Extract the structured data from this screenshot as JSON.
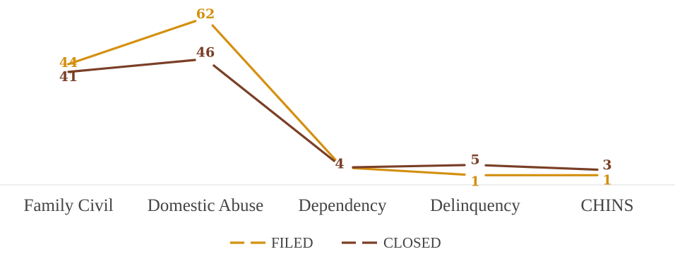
{
  "chart_data": {
    "type": "line",
    "categories": [
      "Family Civil",
      "Domestic Abuse",
      "Dependency",
      "Delinquency",
      "CHINS"
    ],
    "series": [
      {
        "name": "FILED",
        "values": [
          44,
          62,
          4,
          1,
          1
        ],
        "color": "#D4900F"
      },
      {
        "name": "CLOSED",
        "values": [
          41,
          46,
          4,
          5,
          3
        ],
        "color": "#7A3F26"
      }
    ],
    "value_labels": {
      "FILED": [
        "44",
        "62",
        "",
        "1",
        "1"
      ],
      "CLOSED": [
        "41",
        "46",
        "4",
        "5",
        "3"
      ]
    },
    "ylim": [
      0,
      62
    ],
    "grid": false,
    "legend_position": "bottom-center",
    "legend_style": "dashed-line"
  }
}
